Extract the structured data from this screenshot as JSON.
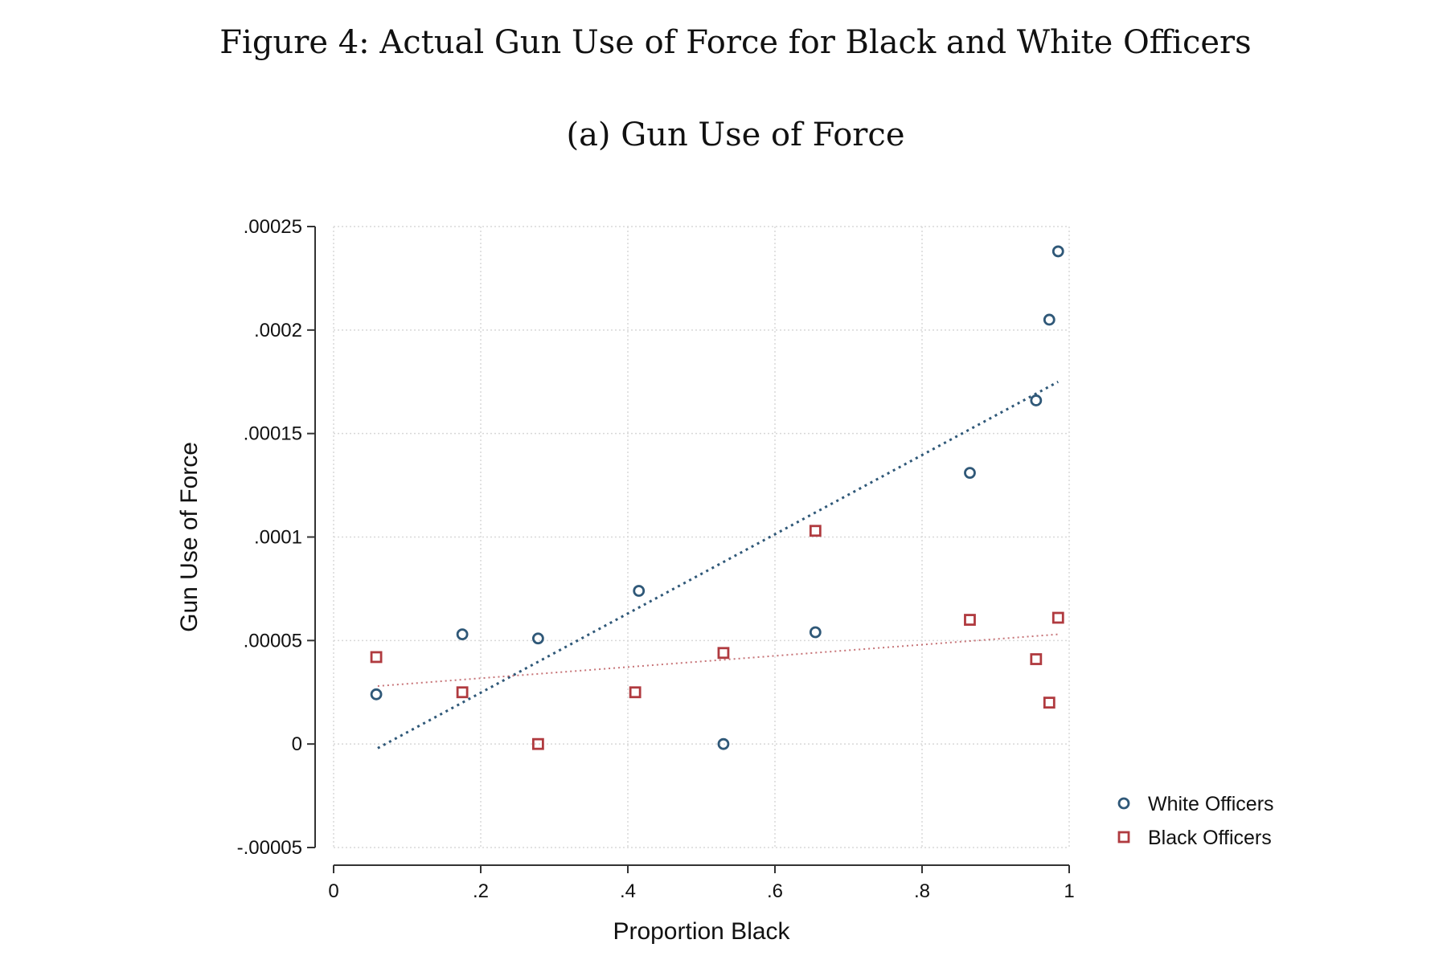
{
  "figure": {
    "title": "Figure 4: Actual Gun Use of Force for Black and White Officers",
    "subtitle": "(a) Gun Use of Force"
  },
  "chart_data": {
    "type": "scatter",
    "title": "",
    "xlabel": "Proportion Black",
    "ylabel": "Gun Use of Force",
    "xlim": [
      0,
      1
    ],
    "ylim": [
      -5e-05,
      0.00025
    ],
    "grid": true,
    "legend_position": "right",
    "x_ticks": [
      {
        "value": 0,
        "label": "0"
      },
      {
        "value": 0.2,
        "label": ".2"
      },
      {
        "value": 0.4,
        "label": ".4"
      },
      {
        "value": 0.6,
        "label": ".6"
      },
      {
        "value": 0.8,
        "label": ".8"
      },
      {
        "value": 1,
        "label": "1"
      }
    ],
    "y_ticks": [
      {
        "value": -5e-05,
        "label": "-.00005"
      },
      {
        "value": 0,
        "label": "0"
      },
      {
        "value": 5e-05,
        "label": ".00005"
      },
      {
        "value": 0.0001,
        "label": ".0001"
      },
      {
        "value": 0.00015,
        "label": ".00015"
      },
      {
        "value": 0.0002,
        "label": ".0002"
      },
      {
        "value": 0.00025,
        "label": ".00025"
      }
    ],
    "series": [
      {
        "name": "White Officers",
        "marker": "circle",
        "color": "#2f5878",
        "points": [
          {
            "x": 0.058,
            "y": 2.4e-05
          },
          {
            "x": 0.175,
            "y": 5.3e-05
          },
          {
            "x": 0.278,
            "y": 5.1e-05
          },
          {
            "x": 0.415,
            "y": 7.4e-05
          },
          {
            "x": 0.53,
            "y": 0.0
          },
          {
            "x": 0.655,
            "y": 5.4e-05
          },
          {
            "x": 0.865,
            "y": 0.000131
          },
          {
            "x": 0.955,
            "y": 0.000166
          },
          {
            "x": 0.973,
            "y": 0.000205
          },
          {
            "x": 0.985,
            "y": 0.000238
          }
        ],
        "fit": {
          "x": [
            0.06,
            0.985
          ],
          "y": [
            -2e-06,
            0.000175
          ]
        }
      },
      {
        "name": "Black Officers",
        "marker": "square",
        "color": "#b03a3f",
        "points": [
          {
            "x": 0.058,
            "y": 4.2e-05
          },
          {
            "x": 0.175,
            "y": 2.5e-05
          },
          {
            "x": 0.278,
            "y": 0.0
          },
          {
            "x": 0.41,
            "y": 2.5e-05
          },
          {
            "x": 0.53,
            "y": 4.4e-05
          },
          {
            "x": 0.655,
            "y": 0.000103
          },
          {
            "x": 0.865,
            "y": 6e-05
          },
          {
            "x": 0.955,
            "y": 4.1e-05
          },
          {
            "x": 0.973,
            "y": 2e-05
          },
          {
            "x": 0.985,
            "y": 6.1e-05
          }
        ],
        "fit": {
          "x": [
            0.06,
            0.985
          ],
          "y": [
            2.8e-05,
            5.3e-05
          ]
        }
      }
    ]
  }
}
